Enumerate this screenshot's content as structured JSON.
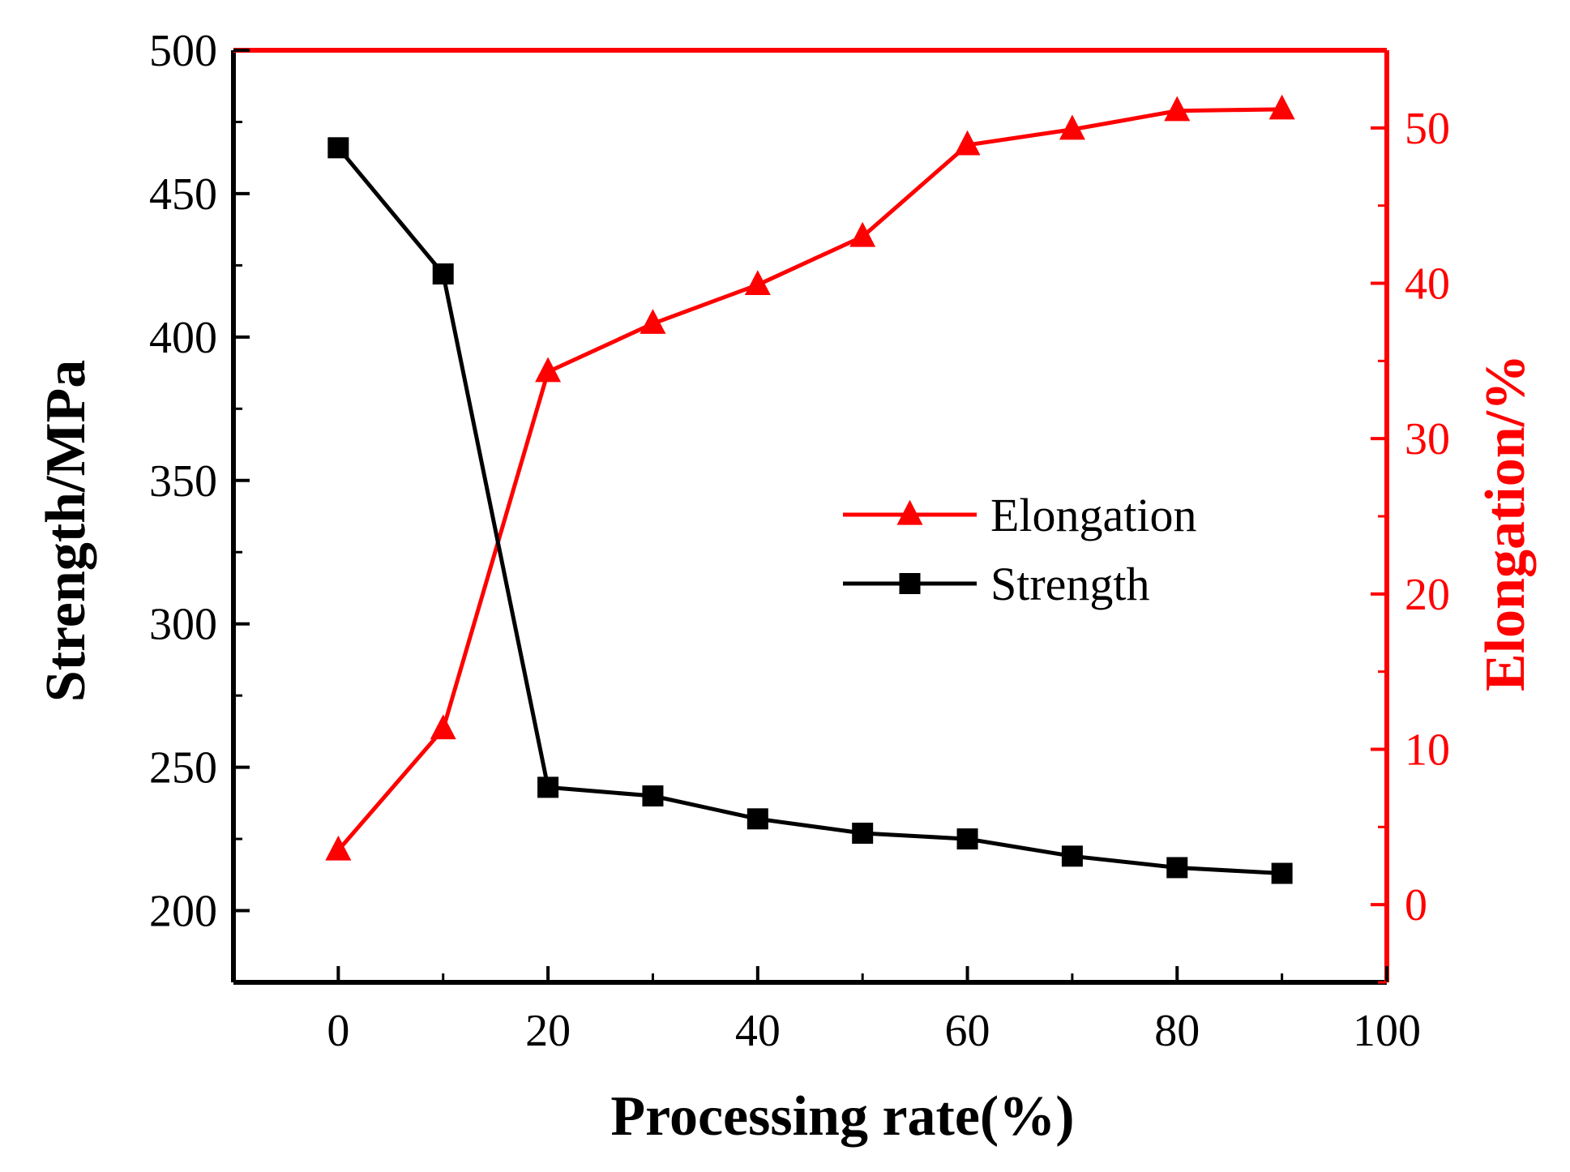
{
  "chart_data": {
    "type": "line",
    "title": "",
    "xlabel": "Processing rate(%)",
    "ylabel": "Strength/MPa",
    "y2label": "Elongation/%",
    "xlim": [
      -10,
      100
    ],
    "ylim": [
      175,
      500
    ],
    "y2lim": [
      -5,
      55
    ],
    "xticks": [
      0,
      20,
      40,
      60,
      80,
      100
    ],
    "yticks": [
      200,
      250,
      300,
      350,
      400,
      450,
      500
    ],
    "y2ticks": [
      0,
      10,
      20,
      30,
      40,
      50
    ],
    "legend_position": "center-right",
    "colors": {
      "strength": "#000000",
      "elongation": "#ff0000",
      "left_axis": "#000000",
      "right_axis": "#ff0000"
    },
    "series": [
      {
        "name": "Elongation",
        "axis": "right",
        "marker": "triangle",
        "color": "#ff0000",
        "x": [
          0,
          10,
          20,
          30,
          40,
          50,
          60,
          70,
          80,
          90
        ],
        "values": [
          3.5,
          11.3,
          34.3,
          37.4,
          39.9,
          43.0,
          48.9,
          49.9,
          51.1,
          51.2
        ]
      },
      {
        "name": "Strength",
        "axis": "left",
        "marker": "square",
        "color": "#000000",
        "x": [
          0,
          10,
          20,
          30,
          40,
          50,
          60,
          70,
          80,
          90
        ],
        "values": [
          466,
          422,
          243,
          240,
          232,
          227,
          225,
          219,
          215,
          213
        ]
      }
    ]
  }
}
